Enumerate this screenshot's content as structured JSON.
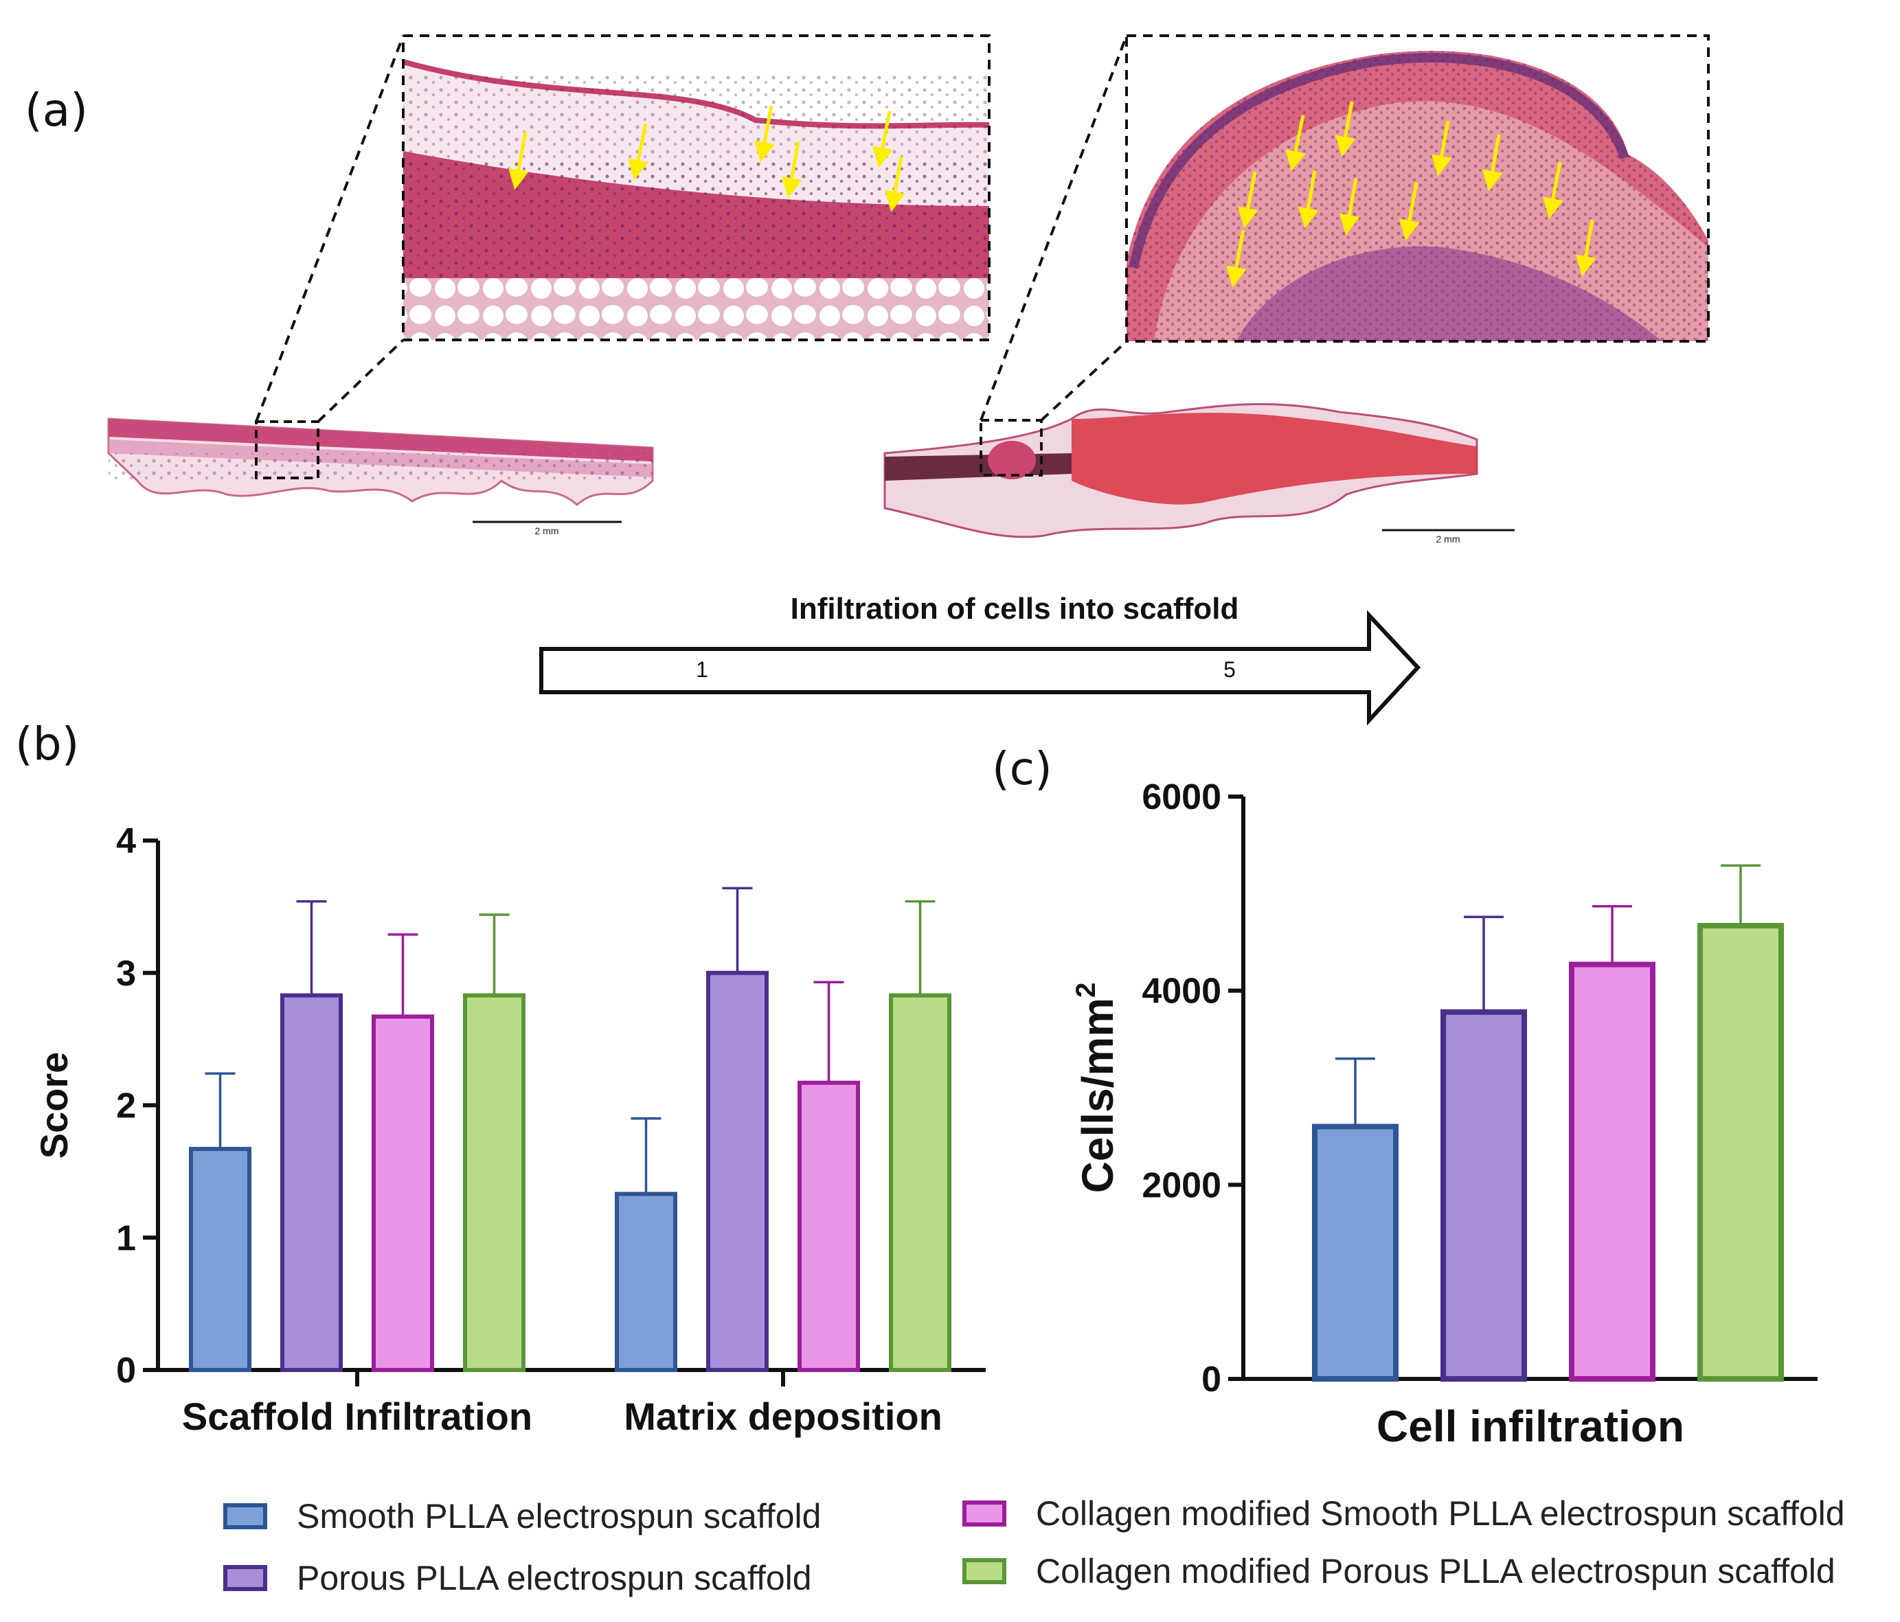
{
  "panel_labels": {
    "a": "(a)",
    "b": "(b)",
    "c": "(c)"
  },
  "infiltration_arrow": {
    "title": "Infiltration of cells into scaffold",
    "start": "1",
    "end": "5"
  },
  "scale_bars": {
    "left": "2 mm",
    "right": "2 mm"
  },
  "colors": {
    "smooth": {
      "fill": "#7ba1d6",
      "stroke": "#2e5594"
    },
    "porous": {
      "fill": "#a68fd6",
      "stroke": "#4a2f8c"
    },
    "coll_smooth": {
      "fill": "#ea96e8",
      "stroke": "#9c1e9a"
    },
    "coll_porous": {
      "fill": "#b9dc86",
      "stroke": "#5a9636"
    },
    "annotation_arrow": "#ffee00"
  },
  "legend": [
    {
      "key": "smooth",
      "label": "Smooth PLLA electrospun scaffold"
    },
    {
      "key": "porous",
      "label": "Porous PLLA electrospun scaffold"
    },
    {
      "key": "coll_smooth",
      "label": "Collagen modified Smooth PLLA electrospun scaffold"
    },
    {
      "key": "coll_porous",
      "label": "Collagen modified Porous PLLA electrospun scaffold"
    }
  ],
  "chart_data": [
    {
      "id": "b",
      "type": "bar",
      "ylabel": "Score",
      "xlabel": "",
      "ylim": [
        0,
        4
      ],
      "yticks": [
        "0",
        "1",
        "2",
        "3",
        "4"
      ],
      "categories": [
        "Scaffold Infiltration",
        "Matrix deposition"
      ],
      "series": [
        {
          "name": "Smooth PLLA electrospun scaffold",
          "key": "smooth",
          "values": [
            1.67,
            1.33
          ],
          "errors": [
            0.57,
            0.57
          ]
        },
        {
          "name": "Porous PLLA electrospun scaffold",
          "key": "porous",
          "values": [
            2.83,
            3.0
          ],
          "errors": [
            0.71,
            0.64
          ]
        },
        {
          "name": "Collagen modified Smooth PLLA electrospun scaffold",
          "key": "coll_smooth",
          "values": [
            2.67,
            2.17
          ],
          "errors": [
            0.62,
            0.76
          ]
        },
        {
          "name": "Collagen modified Porous PLLA electrospun scaffold",
          "key": "coll_porous",
          "values": [
            2.83,
            2.83
          ],
          "errors": [
            0.61,
            0.71
          ]
        }
      ]
    },
    {
      "id": "c",
      "type": "bar",
      "ylabel": "Cells/mm",
      "ylabel_sup": "2",
      "xlabel": "Cell infiltration",
      "ylim": [
        0,
        6000
      ],
      "yticks": [
        "0",
        "2000",
        "4000",
        "6000"
      ],
      "categories": [
        "Cell infiltration"
      ],
      "series": [
        {
          "name": "Smooth PLLA electrospun scaffold",
          "key": "smooth",
          "values": [
            2600
          ],
          "errors": [
            700
          ]
        },
        {
          "name": "Porous PLLA electrospun scaffold",
          "key": "porous",
          "values": [
            3780
          ],
          "errors": [
            980
          ]
        },
        {
          "name": "Collagen modified Smooth PLLA electrospun scaffold",
          "key": "coll_smooth",
          "values": [
            4270
          ],
          "errors": [
            600
          ]
        },
        {
          "name": "Collagen modified Porous PLLA electrospun scaffold",
          "key": "coll_porous",
          "values": [
            4670
          ],
          "errors": [
            620
          ]
        }
      ]
    }
  ]
}
